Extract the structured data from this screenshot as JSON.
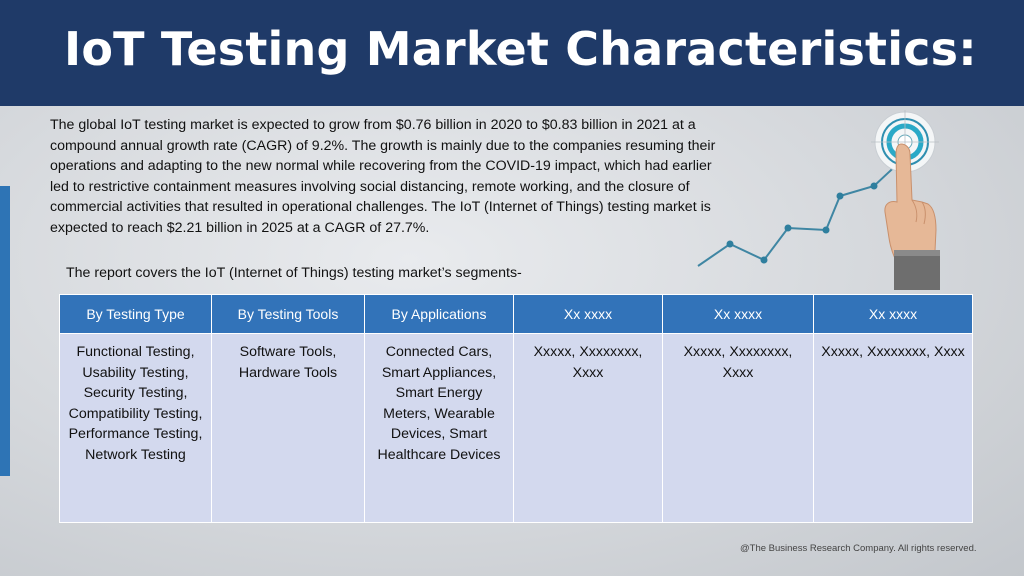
{
  "header": {
    "title": "IoT Testing Market Characteristics:"
  },
  "intro": {
    "paragraph": "The global IoT testing market is expected to grow from $0.76 billion in 2020 to $0.83 billion in 2021 at a compound annual growth rate (CAGR) of 9.2%. The growth is mainly due to the companies resuming their operations and adapting to the new normal while recovering from the COVID-19 impact, which had earlier led to restrictive containment measures involving social distancing, remote working, and the closure of commercial activities that resulted in operational challenges. The IoT (Internet of Things) testing market is expected to reach $2.21 billion in 2025 at a CAGR of 27.7%.",
    "segments_note": "The report covers the IoT (Internet of Things) testing market’s segments-"
  },
  "table": {
    "headers": [
      "By Testing Type",
      "By Testing Tools",
      "By Applications",
      "Xx xxxx",
      "Xx xxxx",
      "Xx xxxx"
    ],
    "cells": [
      "Functional Testing, Usability Testing, Security Testing, Compatibility Testing, Performance Testing, Network Testing",
      "Software Tools, Hardware Tools",
      "Connected Cars, Smart Appliances, Smart Energy Meters, Wearable Devices, Smart Healthcare Devices",
      "Xxxxx, Xxxxxxxx, Xxxx",
      "Xxxxx, Xxxxxxxx, Xxxx",
      "Xxxxx, Xxxxxxxx, Xxxx"
    ]
  },
  "graphic": {
    "icon": "target-touch-growth-icon",
    "accent": "#2f7f9e"
  },
  "footer": {
    "copyright": "@The Business Research Company. All rights reserved."
  },
  "colors": {
    "header_bg": "#1f3a68",
    "table_header": "#3273b9",
    "table_cell": "#d3d9ee"
  }
}
